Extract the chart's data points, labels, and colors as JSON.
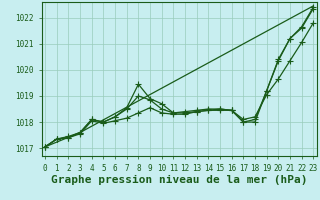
{
  "title": "Graphe pression niveau de la mer (hPa)",
  "bg_color": "#c8eef0",
  "grid_color": "#99ccbb",
  "line_color": "#1a5c1a",
  "ylim": [
    1016.7,
    1022.6
  ],
  "xlim": [
    -0.3,
    23.3
  ],
  "yticks": [
    1017,
    1018,
    1019,
    1020,
    1021,
    1022
  ],
  "xticks": [
    0,
    1,
    2,
    3,
    4,
    5,
    6,
    7,
    8,
    9,
    10,
    11,
    12,
    13,
    14,
    15,
    16,
    17,
    18,
    19,
    20,
    21,
    22,
    23
  ],
  "series": [
    {
      "x": [
        0,
        1,
        2,
        3,
        4,
        5,
        6,
        7,
        8,
        9,
        10,
        11,
        12,
        13,
        14,
        15,
        16,
        17,
        18,
        19,
        20,
        21,
        22,
        23
      ],
      "y": [
        1017.05,
        1017.35,
        1017.4,
        1017.55,
        1018.05,
        1017.95,
        1018.05,
        1018.15,
        1018.35,
        1018.55,
        1018.35,
        1018.3,
        1018.3,
        1018.4,
        1018.45,
        1018.45,
        1018.45,
        1018.1,
        1018.2,
        1019.05,
        1019.65,
        1020.35,
        1021.05,
        1021.8
      ],
      "has_markers": true
    },
    {
      "x": [
        0,
        1,
        2,
        3,
        4,
        5,
        6,
        7,
        8,
        9,
        10,
        11,
        12,
        13,
        14,
        15,
        16,
        17,
        18,
        19,
        20,
        21,
        22,
        23
      ],
      "y": [
        1017.05,
        1017.35,
        1017.4,
        1017.6,
        1018.1,
        1018.0,
        1018.2,
        1018.5,
        1019.0,
        1018.85,
        1018.5,
        1018.35,
        1018.35,
        1018.4,
        1018.45,
        1018.5,
        1018.45,
        1018.0,
        1018.0,
        1019.2,
        1020.35,
        1021.2,
        1021.6,
        1022.35
      ],
      "has_markers": true
    },
    {
      "x": [
        0,
        1,
        2,
        3,
        4,
        5,
        6,
        7,
        8,
        9,
        10,
        11,
        12,
        13,
        14,
        15,
        16,
        17,
        18,
        19,
        20,
        21,
        22,
        23
      ],
      "y": [
        1017.05,
        1017.35,
        1017.45,
        1017.6,
        1018.1,
        1018.0,
        1018.2,
        1018.55,
        1019.45,
        1018.9,
        1018.7,
        1018.35,
        1018.4,
        1018.45,
        1018.5,
        1018.5,
        1018.45,
        1018.0,
        1018.1,
        1019.2,
        1020.4,
        1021.2,
        1021.65,
        1022.4
      ],
      "has_markers": true
    },
    {
      "x": [
        0,
        3,
        23
      ],
      "y": [
        1017.05,
        1017.6,
        1022.45
      ],
      "has_markers": false
    }
  ],
  "marker": "+",
  "markersize": 4,
  "linewidth": 0.9,
  "title_fontsize": 8,
  "tick_fontsize": 5.5
}
